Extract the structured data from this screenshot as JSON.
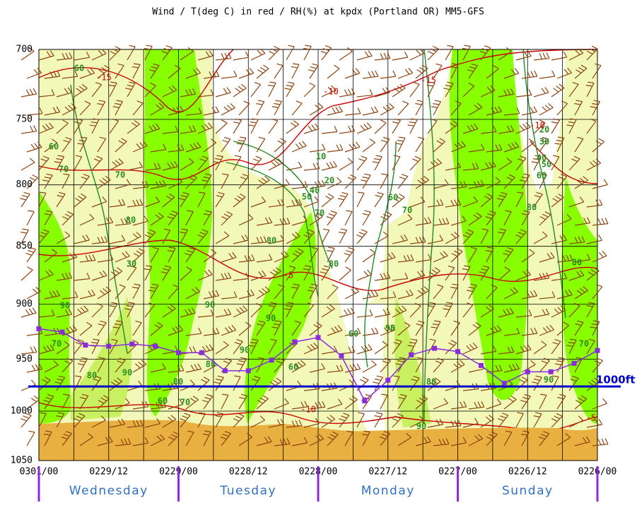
{
  "chart_data": {
    "type": "line",
    "title": "Wind / T(deg C) in red / RH(%) at kpdx (Portland OR)  MM5-GFS",
    "x": [
      0,
      4,
      8,
      12,
      16,
      20,
      24,
      28,
      32,
      36,
      40,
      44,
      48,
      52,
      56,
      60,
      64,
      68,
      72,
      76,
      80,
      84,
      88,
      92,
      96
    ],
    "xlim": [
      0,
      96
    ],
    "xticks": [
      {
        "value": 0,
        "label": "0301/00"
      },
      {
        "value": 12,
        "label": "0229/12"
      },
      {
        "value": 24,
        "label": "0229/00"
      },
      {
        "value": 36,
        "label": "0228/12"
      },
      {
        "value": 48,
        "label": "0228/00"
      },
      {
        "value": 60,
        "label": "0227/12"
      },
      {
        "value": 72,
        "label": "0227/00"
      },
      {
        "value": 84,
        "label": "0226/12"
      },
      {
        "value": 96,
        "label": "0226/00"
      }
    ],
    "ylim": [
      700,
      1050
    ],
    "yscale": "log",
    "yreverse": true,
    "yticks": [
      700,
      750,
      800,
      850,
      900,
      950,
      1000,
      1050
    ],
    "grid": true,
    "series": [
      {
        "color": "#8a2be2",
        "values": [
          922,
          925,
          937,
          938,
          936,
          938,
          944,
          944,
          961,
          961,
          951,
          934,
          930,
          947,
          990,
          970,
          946,
          940,
          943,
          956,
          973,
          962,
          962,
          954,
          942
        ]
      }
    ],
    "reference_line": {
      "value": 976,
      "label": "1000ft",
      "color": "#0000cc"
    },
    "day_ticks": [
      0,
      24,
      48,
      72,
      96
    ],
    "day_labels": [
      "Wednesday",
      "Tuesday",
      "Monday",
      "Sunday"
    ],
    "rh_labels": [
      "60",
      "60",
      "70",
      "70",
      "80",
      "30",
      "80",
      "90",
      "90",
      "90",
      "70",
      "80",
      "90",
      "60",
      "80",
      "90",
      "10",
      "20",
      "40",
      "50",
      "70",
      "80",
      "60",
      "70",
      "60",
      "90",
      "80",
      "90",
      "80",
      "60",
      "70",
      "20",
      "30",
      "40",
      "50",
      "60",
      "80",
      "80",
      "70",
      "90"
    ],
    "temp_labels": [
      "-15",
      "-10",
      "-15",
      "-10",
      "-5",
      "-10",
      "-5"
    ]
  }
}
